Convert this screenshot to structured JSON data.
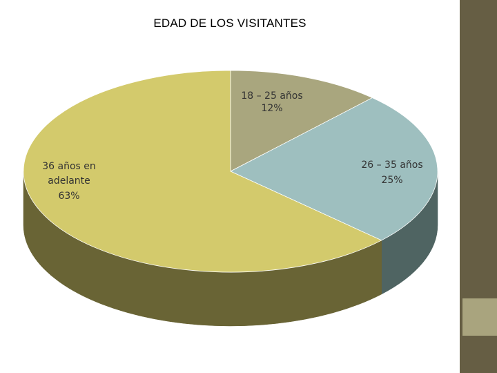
{
  "chart_data": {
    "type": "pie",
    "title": "EDAD DE LOS VISITANTES",
    "slices": [
      {
        "label": "18 – 25 años",
        "value": 12,
        "value_label": "12%",
        "color": "#a9a67e",
        "side_color": "#6e6b4a"
      },
      {
        "label": "26 – 35 años",
        "value": 25,
        "value_label": "25%",
        "color": "#9ebfbf",
        "side_color": "#4f6462"
      },
      {
        "label": "36 años en adelante",
        "value": 63,
        "value_label": "63%",
        "color": "#d3ca6c",
        "side_color": "#696435"
      }
    ],
    "legend": "none",
    "three_d": true
  },
  "colors": {
    "sidebar": "#665e44",
    "sidebar_accent": "#a9a47e"
  }
}
